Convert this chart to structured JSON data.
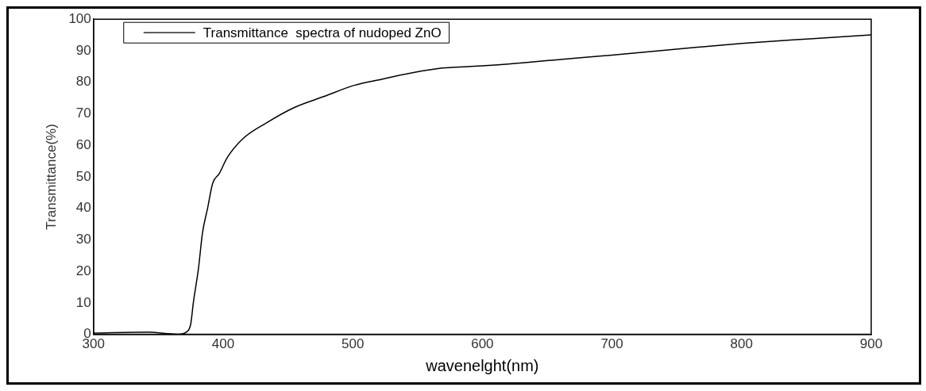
{
  "chart_data": {
    "type": "line",
    "xlabel": "wavenelght(nm)",
    "ylabel": "Transmittance(%)",
    "xlim": [
      300,
      900
    ],
    "xticks": [
      300,
      400,
      500,
      600,
      700,
      800,
      900
    ],
    "ylim": [
      0,
      100
    ],
    "yticks": [
      0,
      10,
      20,
      30,
      40,
      50,
      60,
      70,
      80,
      90,
      100
    ],
    "grid": false,
    "legend": "top left",
    "marker": "none",
    "line_style": "solid",
    "series": [
      {
        "name": "Transmittance  spectra of nudoped ZnO",
        "color": "#000000",
        "x": [
          300,
          342,
          358,
          365,
          372,
          375,
          377,
          381,
          384,
          388,
          392,
          397,
          403,
          415,
          433,
          455,
          478,
          501,
          523,
          546,
          569,
          591,
          620,
          662,
          700,
          766,
          800,
          850,
          900
        ],
        "values": [
          0.4,
          0.7,
          0.2,
          0,
          0.8,
          3.3,
          10,
          21,
          32,
          40,
          48,
          51,
          56,
          62,
          67,
          72,
          75.5,
          79,
          81,
          83,
          84.5,
          85,
          85.8,
          87.3,
          88.6,
          91.1,
          92.3,
          93.7,
          95
        ]
      }
    ]
  }
}
